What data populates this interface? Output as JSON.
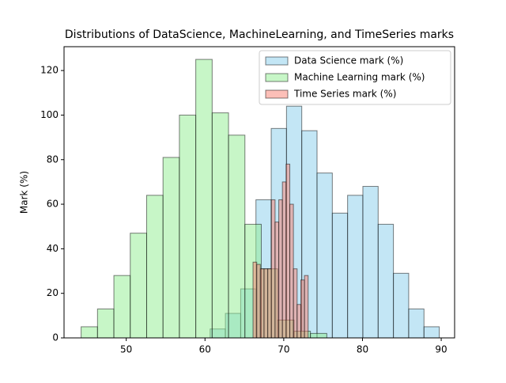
{
  "chart_data": {
    "type": "histogram",
    "title": "Distributions of DataScience, MachineLearning, and TimeSeries marks",
    "y_label": "Mark (%)",
    "xlim": [
      42.1,
      91.7
    ],
    "ylim": [
      0,
      130.7
    ],
    "xticks": [
      50,
      60,
      70,
      80,
      90
    ],
    "yticks": [
      0,
      20,
      40,
      60,
      80,
      100,
      120
    ],
    "grid": false,
    "legend": "upper right",
    "series": [
      {
        "name": "Data Science mark (%)",
        "color": "#87ceeb",
        "bins": [
          60.65,
          62.59,
          64.53,
          66.47,
          68.41,
          70.35,
          72.29,
          74.23,
          76.17,
          78.11,
          80.05,
          81.99,
          83.93,
          85.87,
          87.81,
          89.75
        ],
        "values": [
          4,
          11,
          22,
          62,
          94,
          104,
          93,
          74,
          56,
          64,
          68,
          51,
          29,
          13,
          5
        ]
      },
      {
        "name": "Machine Learning mark (%)",
        "color": "#90ee90",
        "bins": [
          44.27,
          46.35,
          48.43,
          50.51,
          52.59,
          54.67,
          56.75,
          58.83,
          60.91,
          62.99,
          65.07,
          67.15,
          69.23,
          71.31,
          73.39,
          75.47
        ],
        "values": [
          5,
          13,
          28,
          47,
          64,
          81,
          100,
          125,
          101,
          91,
          51,
          31,
          8,
          3,
          2
        ]
      },
      {
        "name": "Time Series mark (%)",
        "color": "#fa8072",
        "bins": [
          66.1,
          66.57,
          67.03,
          67.5,
          67.97,
          68.43,
          68.9,
          69.37,
          69.83,
          70.3,
          70.77,
          71.23,
          71.7,
          72.17,
          72.63,
          73.1
        ],
        "values": [
          34,
          33,
          31,
          31,
          31,
          62,
          52,
          62,
          70,
          78,
          60,
          31,
          15,
          26,
          28
        ]
      }
    ]
  }
}
